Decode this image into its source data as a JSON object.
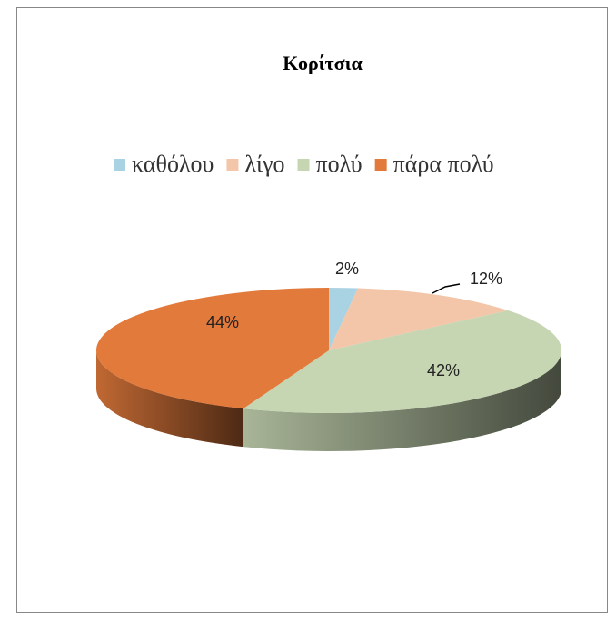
{
  "chart_data": {
    "type": "pie3d",
    "title": "Κορίτσια",
    "categories": [
      "καθόλου",
      "λίγο",
      "πολύ",
      "πάρα πολύ"
    ],
    "values": [
      2,
      12,
      42,
      44
    ],
    "value_labels": [
      "2%",
      "12%",
      "42%",
      "44%"
    ],
    "colors": [
      "#a9d2e3",
      "#f3c6a9",
      "#c6d5b2",
      "#e27a3c"
    ],
    "legend": "top"
  }
}
